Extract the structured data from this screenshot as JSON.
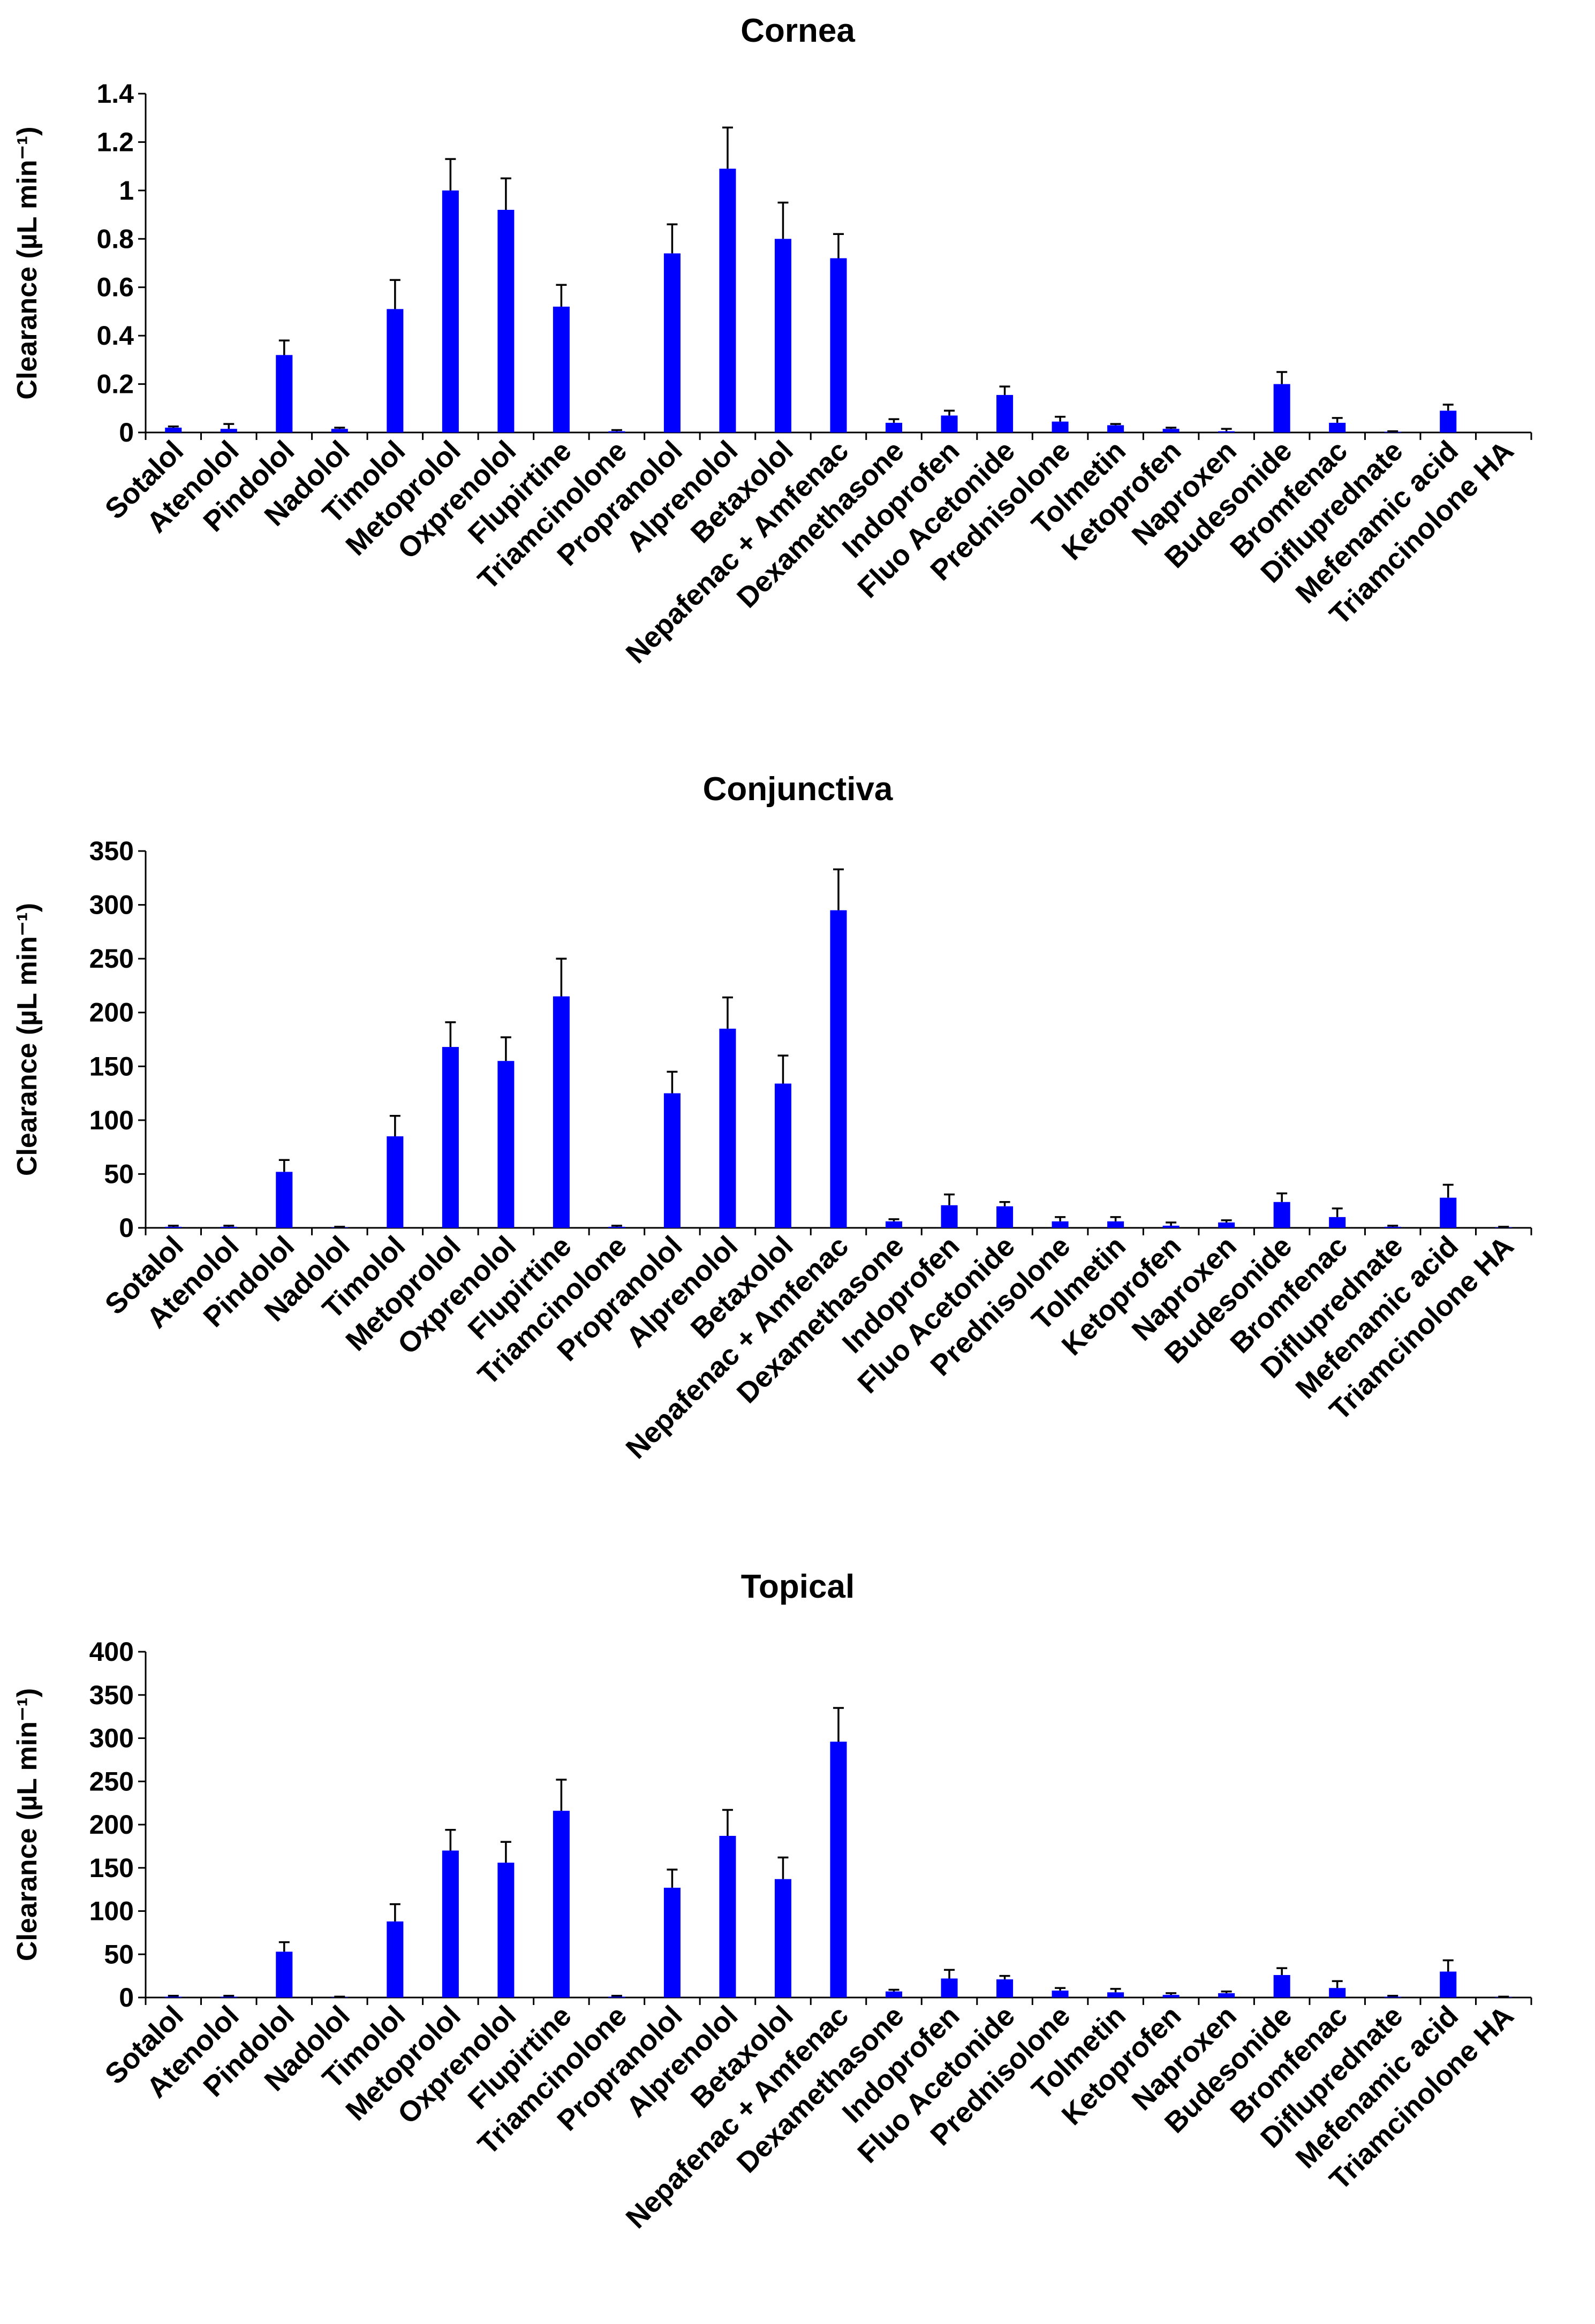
{
  "colors": {
    "bar": "#0000ff",
    "axis": "#000000",
    "error_bar": "#000000"
  },
  "chart_data": [
    {
      "type": "bar",
      "title": "Cornea",
      "ylabel": "Clearance (µL min⁻¹)",
      "ylim": [
        0,
        1.4
      ],
      "yticks": [
        "0",
        "0.2",
        "0.4",
        "0.6",
        "0.8",
        "1",
        "1.2",
        "1.4"
      ],
      "ytick_values": [
        0,
        0.2,
        0.4,
        0.6,
        0.8,
        1.0,
        1.2,
        1.4
      ],
      "grid": false,
      "categories": [
        "Sotalol",
        "Atenolol",
        "Pindolol",
        "Nadolol",
        "Timolol",
        "Metoprolol",
        "Oxprenolol",
        "Flupirtine",
        "Triamcinolone",
        "Propranolol",
        "Alprenolol",
        "Betaxolol",
        "Nepafenac + Amfenac",
        "Dexamethasone",
        "Indoprofen",
        "Fluo Acetonide",
        "Prednisolone",
        "Tolmetin",
        "Ketoprofen",
        "Naproxen",
        "Budesonide",
        "Bromfenac",
        "Difluprednate",
        "Mefenamic acid",
        "Triamcinolone HA"
      ],
      "values": [
        0.02,
        0.015,
        0.32,
        0.015,
        0.51,
        1.0,
        0.92,
        0.52,
        0.005,
        0.74,
        1.09,
        0.8,
        0.72,
        0.04,
        0.07,
        0.155,
        0.045,
        0.03,
        0.015,
        0.005,
        0.2,
        0.04,
        0.003,
        0.09,
        0.0
      ],
      "errors": [
        0.005,
        0.02,
        0.06,
        0.005,
        0.12,
        0.13,
        0.13,
        0.09,
        0.005,
        0.12,
        0.17,
        0.15,
        0.1,
        0.015,
        0.02,
        0.035,
        0.02,
        0.005,
        0.005,
        0.01,
        0.05,
        0.02,
        0.002,
        0.025,
        0.0
      ]
    },
    {
      "type": "bar",
      "title": "Conjunctiva",
      "ylabel": "Clearance (µL min⁻¹)",
      "ylim": [
        0,
        350
      ],
      "yticks": [
        "0",
        "50",
        "100",
        "150",
        "200",
        "250",
        "300",
        "350"
      ],
      "ytick_values": [
        0,
        50,
        100,
        150,
        200,
        250,
        300,
        350
      ],
      "grid": false,
      "categories": [
        "Sotalol",
        "Atenolol",
        "Pindolol",
        "Nadolol",
        "Timolol",
        "Metoprolol",
        "Oxprenolol",
        "Flupirtine",
        "Triamcinolone",
        "Propranolol",
        "Alprenolol",
        "Betaxolol",
        "Nepafenac + Amfenac",
        "Dexamethasone",
        "Indoprofen",
        "Fluo Acetonide",
        "Prednisolone",
        "Tolmetin",
        "Ketoprofen",
        "Naproxen",
        "Budesonide",
        "Bromfenac",
        "Difluprednate",
        "Mefenamic acid",
        "Triamcinolone HA"
      ],
      "values": [
        1,
        1,
        52,
        0.5,
        85,
        168,
        155,
        215,
        1,
        125,
        185,
        134,
        295,
        6,
        21,
        20,
        6,
        6,
        2,
        5,
        24,
        10,
        1,
        28,
        0.5
      ],
      "errors": [
        1,
        1,
        11,
        0.5,
        19,
        23,
        22,
        35,
        1,
        20,
        29,
        26,
        38,
        2,
        10,
        4,
        4,
        4,
        3,
        2,
        8,
        8,
        1,
        12,
        0.5
      ]
    },
    {
      "type": "bar",
      "title": "Topical",
      "ylabel": "Clearance (µL min⁻¹)",
      "ylim": [
        0,
        400
      ],
      "yticks": [
        "0",
        "50",
        "100",
        "150",
        "200",
        "250",
        "300",
        "350",
        "400"
      ],
      "ytick_values": [
        0,
        50,
        100,
        150,
        200,
        250,
        300,
        350,
        400
      ],
      "grid": false,
      "categories": [
        "Sotalol",
        "Atenolol",
        "Pindolol",
        "Nadolol",
        "Timolol",
        "Metoprolol",
        "Oxprenolol",
        "Flupirtine",
        "Triamcinolone",
        "Propranolol",
        "Alprenolol",
        "Betaxolol",
        "Nepafenac + Amfenac",
        "Dexamethasone",
        "Indoprofen",
        "Fluo Acetonide",
        "Prednisolone",
        "Tolmetin",
        "Ketoprofen",
        "Naproxen",
        "Budesonide",
        "Bromfenac",
        "Difluprednate",
        "Mefenamic acid",
        "Triamcinolone HA"
      ],
      "values": [
        1,
        1,
        53,
        0.5,
        88,
        170,
        156,
        216,
        1,
        127,
        187,
        137,
        296,
        7,
        22,
        21,
        8,
        6,
        3,
        5,
        26,
        11,
        1,
        30,
        0.5
      ],
      "errors": [
        1,
        1,
        11,
        0.5,
        20,
        24,
        24,
        36,
        1,
        21,
        30,
        25,
        39,
        2,
        10,
        4,
        3,
        4,
        2,
        2,
        8,
        8,
        1,
        13,
        0.5
      ]
    }
  ]
}
